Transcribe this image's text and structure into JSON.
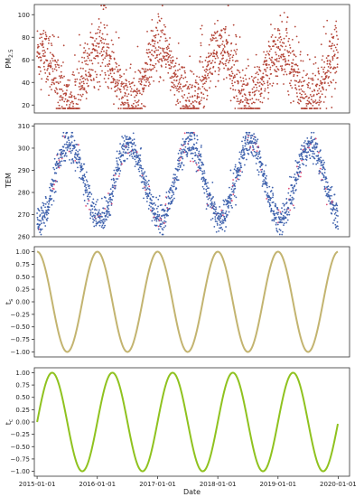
{
  "chart_data": [
    {
      "type": "scatter",
      "title": "",
      "xlabel": "",
      "ylabel": "PM2.5",
      "ylabel_main": "PM",
      "ylabel_sub": "2.5",
      "xlim": [
        "2014-12-15",
        "2020-03-10"
      ],
      "ylim": [
        13,
        109
      ],
      "yticks": [
        20,
        40,
        60,
        80,
        100
      ],
      "show_xticks": false,
      "grid": false,
      "color": "#b5473a",
      "description": "daily concentrations, high in winter (60-109) and low in summer (18-40)",
      "seasonal": {
        "start": "2015-01-01",
        "end": "2019-12-31",
        "peak_day_of_year": 15,
        "mean": 45,
        "amplitude": 23,
        "noise": 13,
        "min": 17,
        "max": 108
      }
    },
    {
      "type": "scatter",
      "title": "",
      "xlabel": "",
      "ylabel": "TEM",
      "xlim": [
        "2014-12-15",
        "2020-03-10"
      ],
      "ylim": [
        260,
        311
      ],
      "yticks": [
        260,
        270,
        280,
        290,
        300,
        310
      ],
      "show_xticks": false,
      "grid": false,
      "color": "#3f62ad",
      "highlight_color": "#e0507a",
      "description": "daily temperature in Kelvin, peaking near 303 in summer and dipping near 266 in winter",
      "seasonal": {
        "start": "2015-01-01",
        "end": "2019-12-31",
        "peak_day_of_year": 196,
        "mean": 285,
        "amplitude": 17,
        "noise": 3.5,
        "min": 261,
        "max": 307
      }
    },
    {
      "type": "line",
      "title": "",
      "xlabel": "",
      "ylabel": "ts",
      "ylabel_main": "t",
      "ylabel_sub": "s",
      "function": "cos",
      "period_days": 365.25,
      "x_start": "2015-01-01",
      "x_end": "2019-12-31",
      "xlim": [
        "2014-12-15",
        "2020-03-10"
      ],
      "ylim": [
        -1.1,
        1.1
      ],
      "yticks": [
        -1.0,
        -0.75,
        -0.5,
        -0.25,
        0.0,
        0.25,
        0.5,
        0.75,
        1.0
      ],
      "ytick_labels": [
        "−1.00",
        "−0.75",
        "−0.50",
        "−0.25",
        "0.00",
        "0.25",
        "0.50",
        "0.75",
        "1.00"
      ],
      "show_xticks": false,
      "grid": false,
      "color": "#c3b470"
    },
    {
      "type": "line",
      "title": "",
      "xlabel": "Date",
      "ylabel": "tc",
      "ylabel_main": "t",
      "ylabel_sub": "c",
      "function": "sin",
      "period_days": 365.25,
      "x_start": "2015-01-01",
      "x_end": "2019-12-31",
      "xlim": [
        "2014-12-15",
        "2020-03-10"
      ],
      "ylim": [
        -1.1,
        1.1
      ],
      "yticks": [
        -1.0,
        -0.75,
        -0.5,
        -0.25,
        0.0,
        0.25,
        0.5,
        0.75,
        1.0
      ],
      "ytick_labels": [
        "−1.00",
        "−0.75",
        "−0.50",
        "−0.25",
        "0.00",
        "0.25",
        "0.50",
        "0.75",
        "1.00"
      ],
      "xticks": [
        "2015-01-01",
        "2016-01-01",
        "2017-01-01",
        "2018-01-01",
        "2019-01-01",
        "2020-01-01"
      ],
      "show_xticks": true,
      "grid": false,
      "color": "#8fc21f"
    }
  ]
}
